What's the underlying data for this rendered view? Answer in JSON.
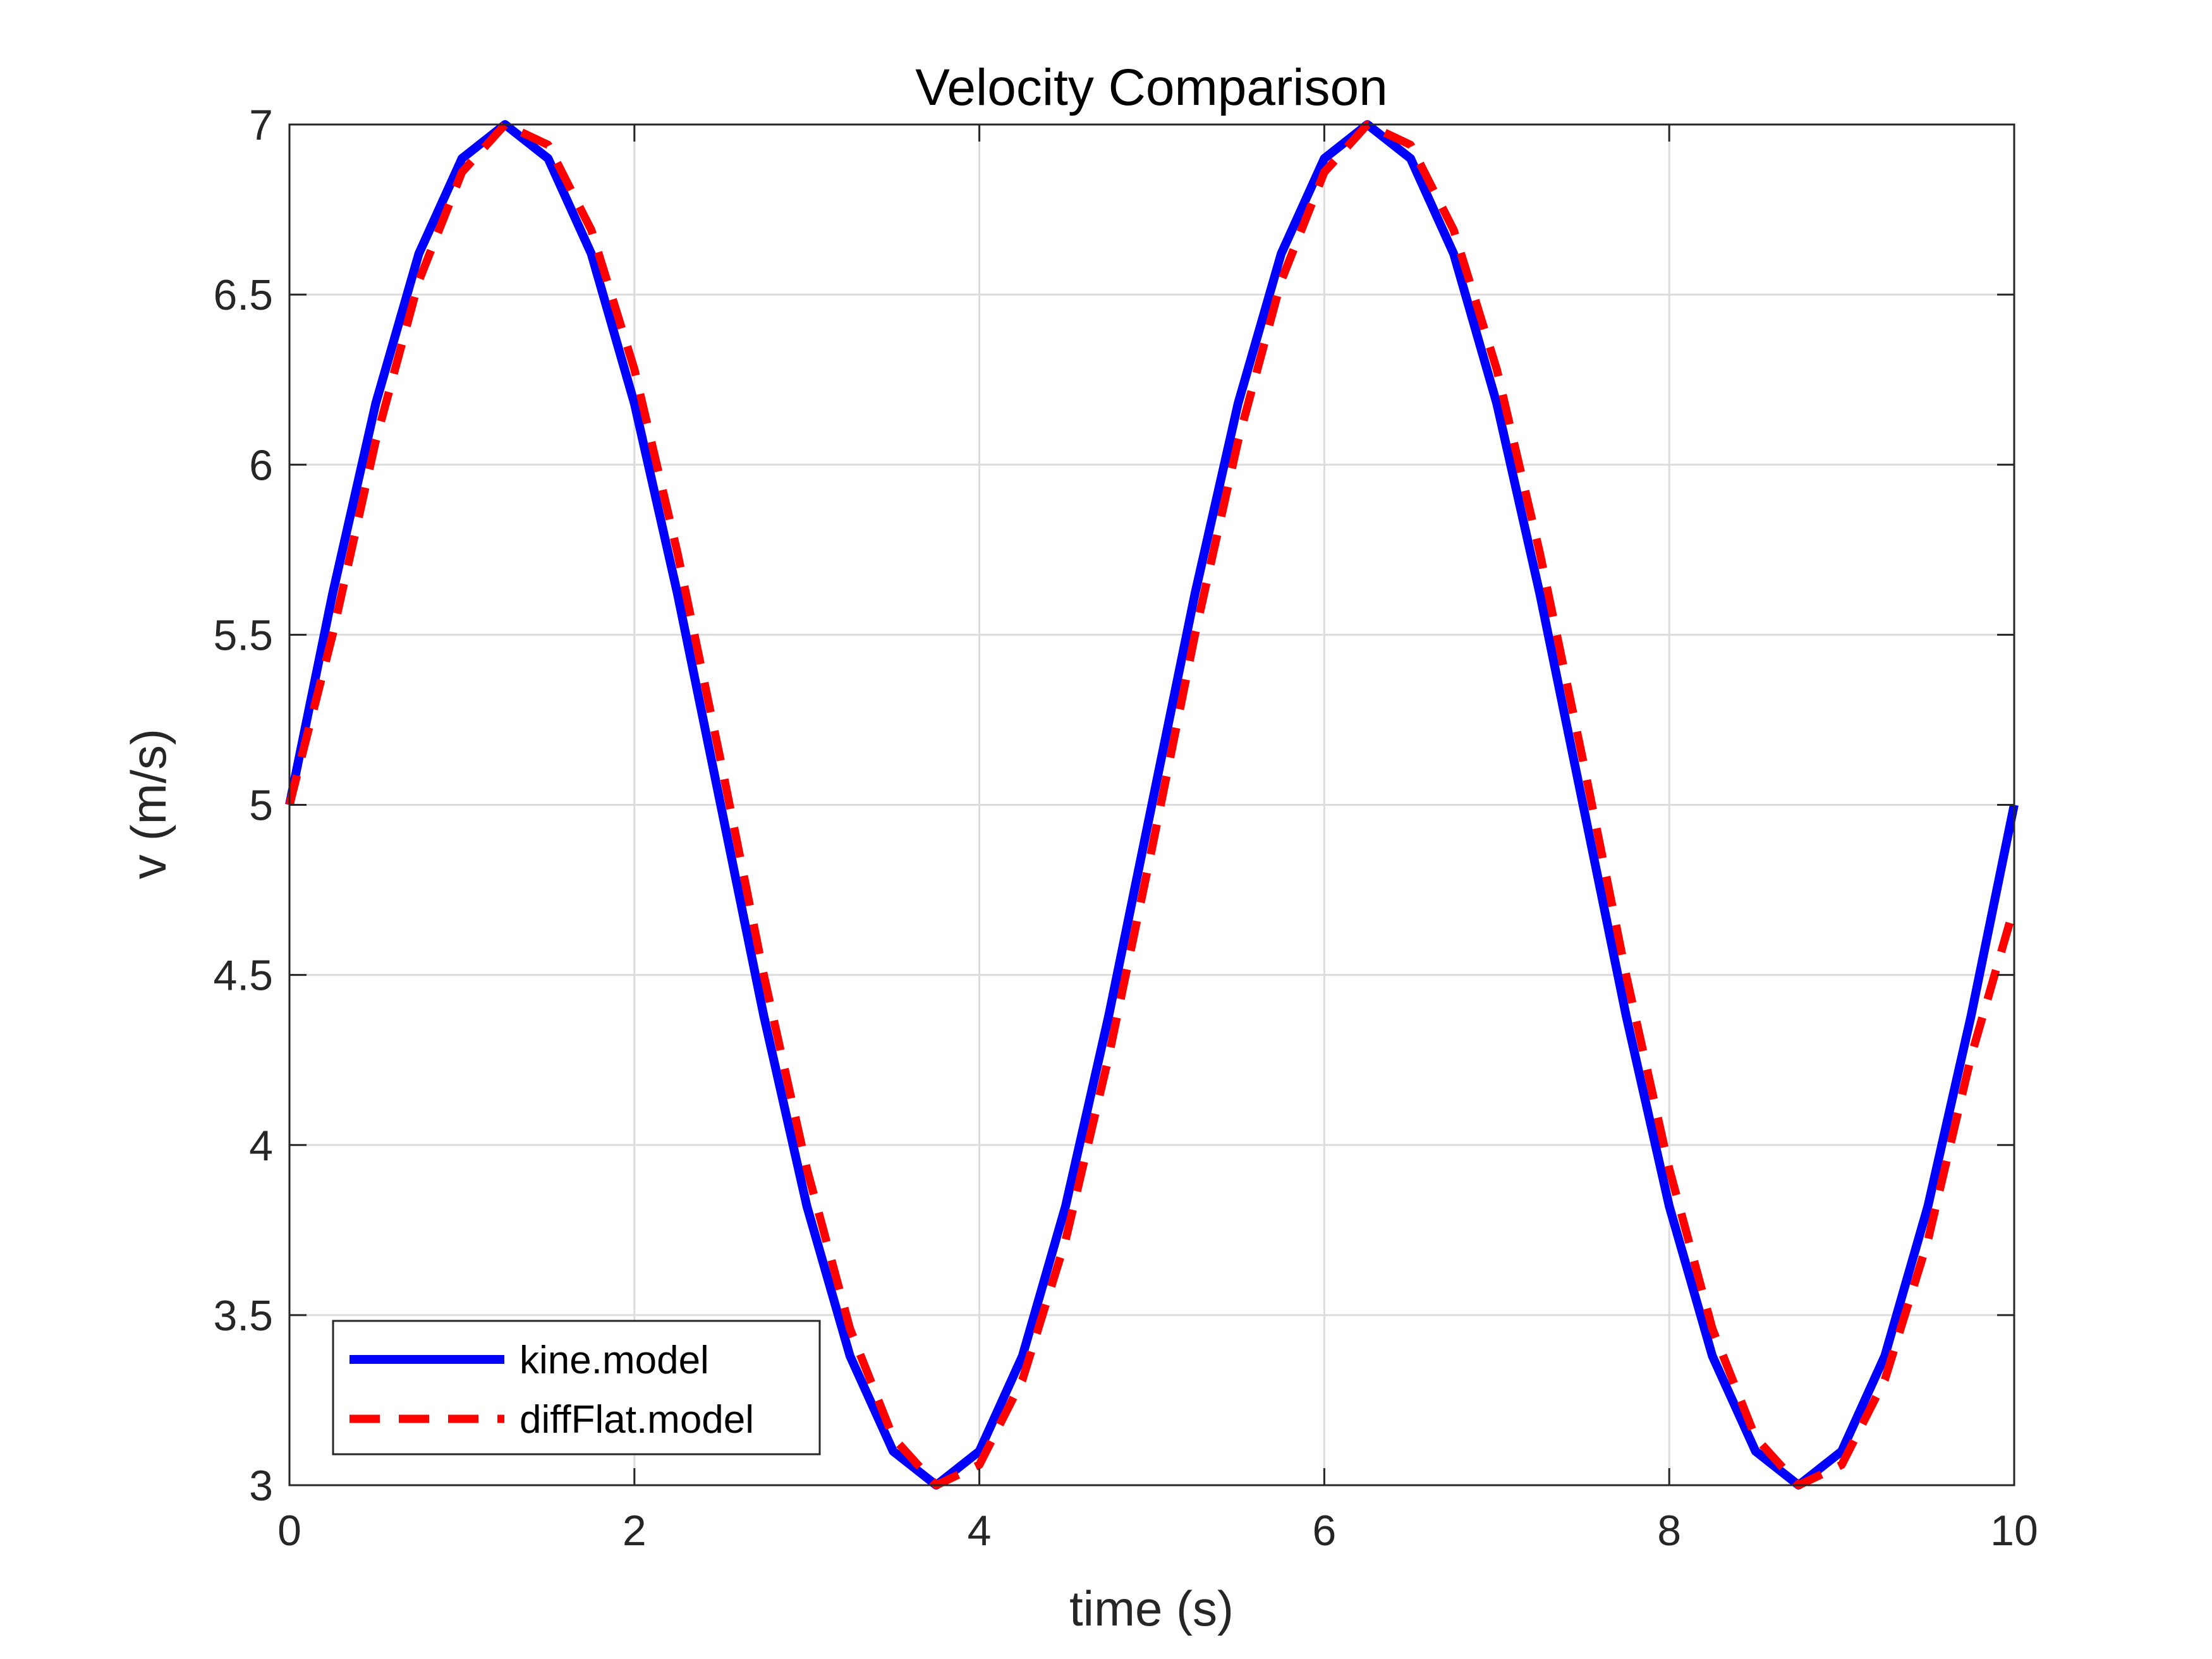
{
  "chart_data": {
    "type": "line",
    "title": "Velocity Comparison",
    "xlabel": "time (s)",
    "ylabel": "v (m/s)",
    "xlim": [
      0,
      10
    ],
    "ylim": [
      3,
      7
    ],
    "xticks": [
      0,
      2,
      4,
      6,
      8,
      10
    ],
    "xtick_labels": [
      "0",
      "2",
      "4",
      "6",
      "8",
      "10"
    ],
    "yticks": [
      3,
      3.5,
      4,
      4.5,
      5,
      5.5,
      6,
      6.5,
      7
    ],
    "ytick_labels": [
      "3",
      "3.5",
      "4",
      "4.5",
      "5",
      "5.5",
      "6",
      "6.5",
      "7"
    ],
    "grid": true,
    "legend_position": "bottom-left",
    "x": [
      0,
      0.25,
      0.5,
      0.75,
      1,
      1.25,
      1.5,
      1.75,
      2,
      2.25,
      2.5,
      2.75,
      3,
      3.25,
      3.5,
      3.75,
      4,
      4.25,
      4.5,
      4.75,
      5,
      5.25,
      5.5,
      5.75,
      6,
      6.25,
      6.5,
      6.75,
      7,
      7.25,
      7.5,
      7.75,
      8,
      8.25,
      8.5,
      8.75,
      9,
      9.25,
      9.5,
      9.75,
      10
    ],
    "series": [
      {
        "name": "kine.model",
        "color": "#0000ff",
        "style": "solid",
        "values": [
          5.0,
          5.62,
          6.18,
          6.62,
          6.9,
          7.0,
          6.9,
          6.62,
          6.18,
          5.62,
          5.0,
          4.38,
          3.82,
          3.38,
          3.1,
          3.0,
          3.1,
          3.38,
          3.82,
          4.38,
          5.0,
          5.62,
          6.18,
          6.62,
          6.9,
          7.0,
          6.9,
          6.62,
          6.18,
          5.62,
          5.0,
          4.38,
          3.82,
          3.38,
          3.1,
          3.0,
          3.1,
          3.38,
          3.82,
          4.38,
          5.0
        ]
      },
      {
        "name": "diffFlat.model",
        "color": "#ff0000",
        "style": "dashed",
        "values": [
          5.0,
          5.5,
          6.07,
          6.54,
          6.86,
          7.0,
          6.94,
          6.69,
          6.28,
          5.74,
          5.13,
          4.5,
          3.93,
          3.46,
          3.14,
          3.0,
          3.06,
          3.31,
          3.72,
          4.26,
          4.87,
          5.5,
          6.07,
          6.54,
          6.86,
          7.0,
          6.94,
          6.69,
          6.28,
          5.74,
          5.13,
          4.5,
          3.93,
          3.46,
          3.14,
          3.0,
          3.06,
          3.31,
          3.72,
          4.26,
          4.7
        ]
      }
    ]
  }
}
